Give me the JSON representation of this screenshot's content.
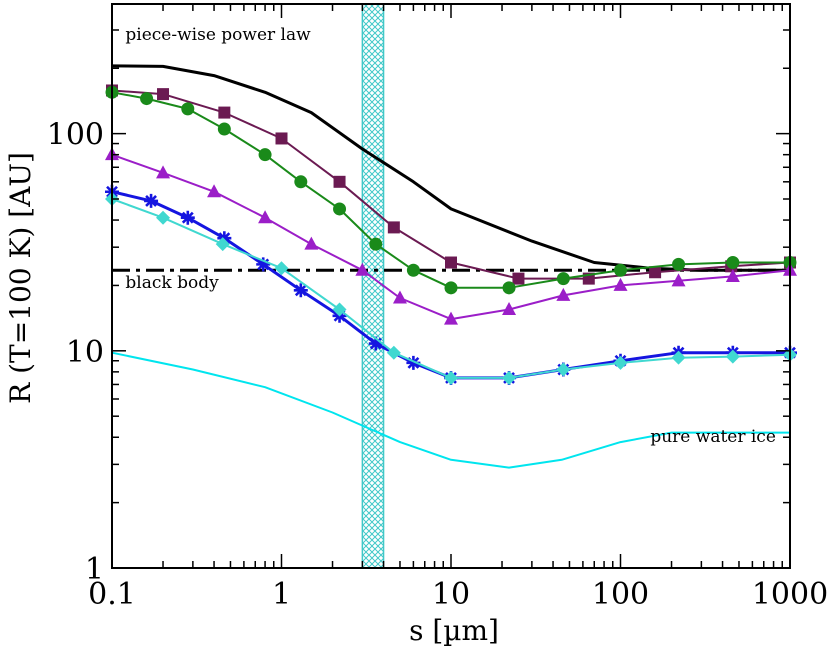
{
  "chart_data": {
    "type": "line",
    "xscale": "log",
    "yscale": "log",
    "xlim": [
      0.1,
      1000
    ],
    "ylim": [
      1,
      300
    ],
    "xlabel": "s [µm]",
    "ylabel": "R (T=100 K) [AU]",
    "xticks": [
      {
        "value": 0.1,
        "label": "0.1"
      },
      {
        "value": 1,
        "label": "1"
      },
      {
        "value": 10,
        "label": "10"
      },
      {
        "value": 100,
        "label": "100"
      },
      {
        "value": 1000,
        "label": "1000"
      }
    ],
    "yticks": [
      {
        "value": 1,
        "label": "1"
      },
      {
        "value": 10,
        "label": "10"
      },
      {
        "value": 100,
        "label": "100"
      }
    ],
    "band": {
      "x0": 3.0,
      "x1": 4.0,
      "color": "#40c8c8"
    },
    "annotations": [
      {
        "text": "piece-wise power law",
        "x": 0.12,
        "y": 270
      },
      {
        "text": "black body",
        "x": 0.12,
        "y": 19.5
      },
      {
        "text": "pure water ice",
        "x": 150,
        "y": 3.8
      }
    ],
    "series": [
      {
        "name": "piece-wise power law",
        "color": "#000000",
        "width": 3,
        "marker": "none",
        "x": [
          0.1,
          0.2,
          0.4,
          0.8,
          1.5,
          3,
          6,
          10,
          30,
          70,
          150,
          300,
          1000
        ],
        "y": [
          205,
          204,
          185,
          155,
          125,
          85,
          60,
          45,
          32,
          25.5,
          24,
          23.5,
          23.5
        ]
      },
      {
        "name": "black body",
        "color": "#000000",
        "width": 3,
        "marker": "none",
        "dash": "18 6 4 6",
        "x": [
          0.1,
          1000
        ],
        "y": [
          23.5,
          23.5
        ]
      },
      {
        "name": "pure water ice",
        "color": "#00e5ee",
        "width": 2,
        "marker": "none",
        "x": [
          0.1,
          0.3,
          0.8,
          2,
          5,
          10,
          22,
          45,
          100,
          200,
          1000
        ],
        "y": [
          9.8,
          8.2,
          6.8,
          5.2,
          3.8,
          3.15,
          2.9,
          3.15,
          3.8,
          4.2,
          4.2
        ]
      },
      {
        "name": "maroon squares",
        "color": "#6b1a52",
        "width": 2,
        "marker": "square",
        "x": [
          0.1,
          0.2,
          0.46,
          1,
          2.2,
          4.6,
          10,
          25,
          65,
          160,
          450,
          1000
        ],
        "y": [
          158,
          152,
          125,
          95,
          60,
          37,
          25.5,
          21.5,
          21.5,
          23,
          24.5,
          25.5
        ]
      },
      {
        "name": "green circles",
        "color": "#1a8a1a",
        "width": 2,
        "marker": "circle",
        "x": [
          0.1,
          0.16,
          0.28,
          0.46,
          0.8,
          1.3,
          2.2,
          3.6,
          6,
          10,
          22,
          46,
          100,
          220,
          460,
          1000
        ],
        "y": [
          155,
          145,
          130,
          105,
          80,
          60,
          45,
          31,
          23.5,
          19.5,
          19.5,
          21.5,
          23.5,
          25,
          25.5,
          25.5
        ]
      },
      {
        "name": "purple triangles",
        "color": "#9b1ec8",
        "width": 2,
        "marker": "triangle",
        "x": [
          0.1,
          0.2,
          0.4,
          0.8,
          1.5,
          3,
          5,
          10,
          22,
          46,
          100,
          220,
          460,
          1000
        ],
        "y": [
          80,
          66,
          54,
          41,
          31,
          23.5,
          17.5,
          14,
          15.5,
          18,
          20,
          21,
          22,
          23.5
        ]
      },
      {
        "name": "blue stars",
        "color": "#1515e0",
        "width": 3,
        "marker": "star",
        "x": [
          0.1,
          0.17,
          0.28,
          0.46,
          0.78,
          1.3,
          2.2,
          3.6,
          6,
          10,
          22,
          46,
          100,
          220,
          460,
          1000
        ],
        "y": [
          54,
          49,
          41,
          33,
          25,
          19,
          14.5,
          10.8,
          8.8,
          7.5,
          7.5,
          8.2,
          9,
          9.8,
          9.8,
          9.8
        ]
      },
      {
        "name": "cyan diamonds",
        "color": "#40d8d0",
        "width": 2,
        "marker": "diamond",
        "x": [
          0.1,
          0.2,
          0.45,
          1,
          2.2,
          4.6,
          10,
          22,
          46,
          100,
          220,
          460,
          1000
        ],
        "y": [
          50,
          41,
          31,
          24,
          15.5,
          9.8,
          7.5,
          7.5,
          8.2,
          8.8,
          9.3,
          9.4,
          9.6
        ]
      }
    ]
  }
}
